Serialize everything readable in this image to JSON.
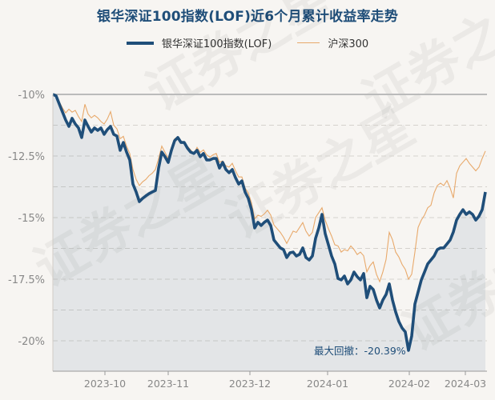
{
  "chart_data": {
    "type": "line",
    "title": "银华深证100指数(LOF)近6个月累计收益率走势",
    "xlabel": "",
    "ylabel": "",
    "ylim": [
      -21.1,
      -10
    ],
    "y_ticks": [
      "-10%",
      "-12.5%",
      "-15%",
      "-17.5%",
      "-20%"
    ],
    "y_tick_values": [
      -10,
      -12.5,
      -15,
      -17.5,
      -20
    ],
    "x_ticks": [
      "2023-10",
      "2023-11",
      "2023-12",
      "2024-01",
      "2024-02",
      "2024-03"
    ],
    "grid": true,
    "legend_position": "top",
    "annotation": "最大回撤：-20.39%",
    "series": [
      {
        "name": "银华深证100指数(LOF)",
        "color": "#1f4e79",
        "values": [
          -10.0,
          -10.06,
          -10.39,
          -10.71,
          -11.04,
          -11.3,
          -10.97,
          -11.2,
          -11.36,
          -11.75,
          -11.04,
          -11.3,
          -11.53,
          -11.36,
          -11.46,
          -11.36,
          -11.62,
          -11.43,
          -11.3,
          -11.62,
          -11.69,
          -12.27,
          -11.95,
          -12.34,
          -12.66,
          -13.64,
          -13.96,
          -14.35,
          -14.22,
          -14.12,
          -14.03,
          -13.96,
          -13.9,
          -12.99,
          -12.34,
          -12.53,
          -12.76,
          -12.27,
          -11.88,
          -11.75,
          -11.95,
          -11.95,
          -12.18,
          -12.34,
          -12.4,
          -12.27,
          -12.53,
          -12.4,
          -12.66,
          -12.66,
          -12.6,
          -12.6,
          -12.99,
          -12.76,
          -13.05,
          -13.18,
          -13.05,
          -13.38,
          -13.64,
          -13.51,
          -13.96,
          -14.22,
          -14.68,
          -15.42,
          -15.19,
          -15.32,
          -15.19,
          -15.1,
          -15.32,
          -15.91,
          -16.07,
          -16.23,
          -16.3,
          -16.62,
          -16.43,
          -16.4,
          -16.56,
          -16.49,
          -16.23,
          -16.62,
          -16.72,
          -16.56,
          -15.84,
          -15.42,
          -14.87,
          -15.65,
          -16.1,
          -16.56,
          -16.88,
          -17.47,
          -17.53,
          -17.37,
          -17.69,
          -17.53,
          -17.21,
          -17.4,
          -17.53,
          -17.27,
          -18.25,
          -17.79,
          -17.92,
          -18.34,
          -18.67,
          -18.34,
          -18.12,
          -17.69,
          -18.34,
          -18.83,
          -19.22,
          -19.48,
          -19.64,
          -20.39,
          -19.81,
          -18.51,
          -18.02,
          -17.53,
          -17.21,
          -16.88,
          -16.72,
          -16.56,
          -16.3,
          -16.23,
          -16.23,
          -16.07,
          -15.91,
          -15.58,
          -15.1,
          -14.87,
          -14.68,
          -14.87,
          -14.77,
          -14.87,
          -15.1,
          -14.94,
          -14.68,
          -13.96
        ]
      },
      {
        "name": "沪深300",
        "color": "#e8a96b",
        "values": [
          -10.0,
          -10.1,
          -10.3,
          -10.55,
          -10.75,
          -10.6,
          -10.72,
          -10.65,
          -10.9,
          -11.1,
          -10.4,
          -10.8,
          -10.95,
          -10.85,
          -10.95,
          -11.1,
          -11.2,
          -11.0,
          -10.7,
          -11.25,
          -11.4,
          -11.8,
          -11.7,
          -12.1,
          -12.4,
          -13.05,
          -13.45,
          -13.7,
          -13.55,
          -13.45,
          -13.3,
          -13.2,
          -13.05,
          -12.6,
          -12.1,
          -12.35,
          -12.6,
          -12.15,
          -11.8,
          -11.75,
          -11.9,
          -11.95,
          -12.1,
          -12.25,
          -12.4,
          -12.15,
          -12.35,
          -12.25,
          -12.45,
          -12.55,
          -12.45,
          -12.4,
          -12.75,
          -12.7,
          -12.9,
          -12.95,
          -12.8,
          -13.1,
          -13.35,
          -13.35,
          -13.8,
          -14.0,
          -14.4,
          -15.05,
          -14.9,
          -14.95,
          -14.85,
          -14.7,
          -14.9,
          -15.3,
          -15.45,
          -15.6,
          -15.8,
          -16.05,
          -15.8,
          -15.55,
          -15.6,
          -15.4,
          -15.2,
          -15.55,
          -15.75,
          -15.6,
          -15.0,
          -14.8,
          -14.6,
          -15.1,
          -15.45,
          -15.75,
          -16.1,
          -16.15,
          -16.4,
          -16.3,
          -16.35,
          -16.15,
          -16.3,
          -16.5,
          -16.4,
          -16.55,
          -17.2,
          -16.95,
          -16.8,
          -17.3,
          -17.6,
          -17.2,
          -16.7,
          -15.6,
          -15.9,
          -16.4,
          -16.6,
          -16.9,
          -17.1,
          -17.5,
          -17.3,
          -16.4,
          -15.4,
          -15.1,
          -14.9,
          -14.6,
          -14.5,
          -14.0,
          -13.7,
          -13.6,
          -13.7,
          -13.5,
          -13.8,
          -14.2,
          -13.2,
          -12.9,
          -12.75,
          -12.6,
          -12.8,
          -12.95,
          -13.1,
          -12.95,
          -12.6,
          -12.3
        ]
      }
    ]
  },
  "watermark": "证券之星"
}
